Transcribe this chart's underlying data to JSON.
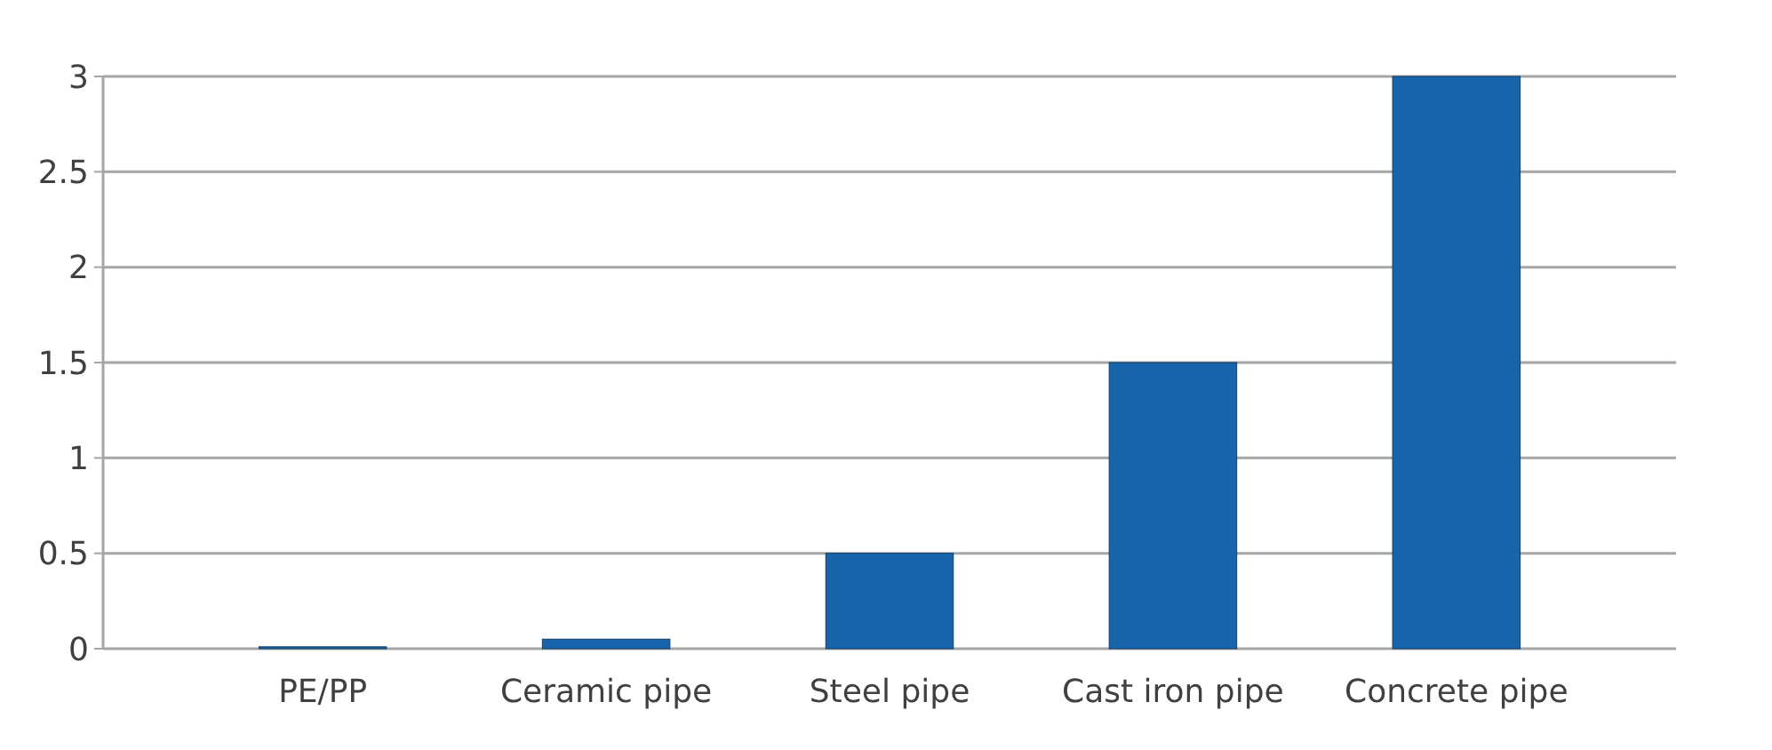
{
  "chart_data": {
    "type": "bar",
    "categories": [
      "PE/PP",
      "Ceramic pipe",
      "Steel pipe",
      "Cast iron pipe",
      "Concrete pipe"
    ],
    "values": [
      0.01,
      0.05,
      0.5,
      1.5,
      3
    ],
    "color": "#1764aa",
    "ylim": [
      0,
      3
    ],
    "yticks": [
      0,
      0.5,
      1,
      1.5,
      2,
      2.5,
      3
    ],
    "grid": true
  }
}
